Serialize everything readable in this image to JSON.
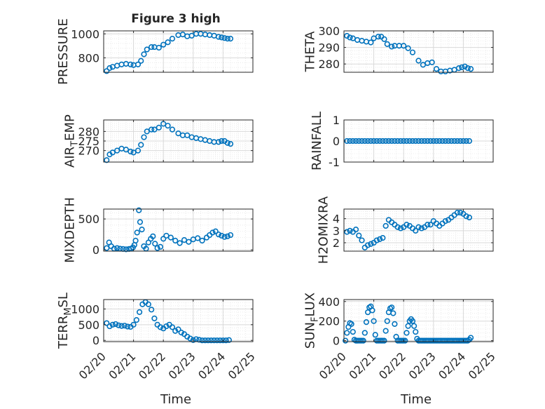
{
  "figure_title": "Figure 3 high",
  "x_axis_label": "Time",
  "x_ticks": [
    "02/20",
    "02/21",
    "02/22",
    "02/23",
    "02/24",
    "02/25"
  ],
  "colors": {
    "marker": "#0072BD",
    "axis": "#262626",
    "grid": "#d9d9d9"
  },
  "chart_data": [
    {
      "type": "scatter",
      "ylabel": "PRESSURE",
      "ylabel_sub": "",
      "ylabel_tail": "",
      "xlim": [
        0,
        5
      ],
      "ylim": [
        680,
        1025
      ],
      "yticks": [
        800,
        1000
      ],
      "series": [
        {
          "x": [
            0.1,
            0.2,
            0.3,
            0.45,
            0.6,
            0.75,
            0.9,
            1.0,
            1.15,
            1.25,
            1.35,
            1.45,
            1.6,
            1.7,
            1.85,
            2.0,
            2.15,
            2.3,
            2.5,
            2.65,
            2.8,
            2.95,
            3.1,
            3.25,
            3.4,
            3.55,
            3.7,
            3.85,
            3.95,
            4.05,
            4.15,
            4.25
          ],
          "y": [
            690,
            715,
            725,
            735,
            745,
            750,
            745,
            740,
            745,
            775,
            830,
            870,
            890,
            890,
            885,
            910,
            930,
            960,
            990,
            995,
            980,
            985,
            1000,
            1000,
            995,
            990,
            985,
            975,
            970,
            965,
            960,
            960
          ]
        }
      ]
    },
    {
      "type": "scatter",
      "ylabel": "THETA",
      "ylabel_sub": "",
      "ylabel_tail": "",
      "xlim": [
        0,
        5
      ],
      "ylim": [
        275,
        300
      ],
      "yticks": [
        280,
        290,
        300
      ],
      "series": [
        {
          "x": [
            0.1,
            0.2,
            0.3,
            0.45,
            0.6,
            0.75,
            0.9,
            1.0,
            1.15,
            1.25,
            1.35,
            1.45,
            1.6,
            1.7,
            1.85,
            2.0,
            2.15,
            2.3,
            2.5,
            2.65,
            2.8,
            2.95,
            3.1,
            3.25,
            3.4,
            3.55,
            3.7,
            3.85,
            3.95,
            4.05,
            4.15,
            4.25
          ],
          "y": [
            297,
            296,
            295.5,
            294.5,
            294,
            293.5,
            293,
            295.5,
            296.5,
            296.5,
            295,
            292,
            290.5,
            291,
            291,
            291,
            289.5,
            287,
            282,
            279.5,
            280.5,
            281,
            277,
            275.5,
            275.5,
            276,
            276.5,
            277.5,
            278,
            278.5,
            277.5,
            277
          ]
        }
      ]
    },
    {
      "type": "scatter",
      "ylabel": "AIR",
      "ylabel_sub": "T",
      "ylabel_tail": "EMP",
      "xlim": [
        0,
        5
      ],
      "ylim": [
        264,
        286
      ],
      "yticks": [
        270,
        275,
        280
      ],
      "series": [
        {
          "x": [
            0.1,
            0.2,
            0.3,
            0.45,
            0.6,
            0.75,
            0.9,
            1.0,
            1.15,
            1.25,
            1.35,
            1.45,
            1.6,
            1.7,
            1.85,
            2.0,
            2.15,
            2.3,
            2.5,
            2.65,
            2.8,
            2.95,
            3.1,
            3.25,
            3.4,
            3.55,
            3.7,
            3.85,
            3.95,
            4.05,
            4.15,
            4.25
          ],
          "y": [
            265,
            268,
            269,
            270,
            271,
            270.5,
            269.5,
            269,
            270,
            273,
            277,
            280,
            281,
            281,
            282,
            284,
            283,
            281,
            279,
            278,
            278,
            277,
            276.5,
            276,
            275.5,
            275,
            274.5,
            274.5,
            275,
            275,
            274,
            273.5
          ]
        }
      ]
    },
    {
      "type": "scatter",
      "ylabel": "RAINFALL",
      "ylabel_sub": "",
      "ylabel_tail": "",
      "xlim": [
        0,
        5
      ],
      "ylim": [
        -1,
        1
      ],
      "yticks": [
        -1,
        0,
        1
      ],
      "series": [
        {
          "x": [
            0.1,
            0.2,
            0.3,
            0.4,
            0.5,
            0.6,
            0.7,
            0.8,
            0.9,
            1.0,
            1.1,
            1.2,
            1.3,
            1.4,
            1.5,
            1.6,
            1.7,
            1.8,
            1.9,
            2.0,
            2.1,
            2.2,
            2.3,
            2.4,
            2.5,
            2.6,
            2.7,
            2.8,
            2.9,
            3.0,
            3.1,
            3.2,
            3.3,
            3.4,
            3.5,
            3.6,
            3.7,
            3.8,
            3.9,
            4.0,
            4.1,
            4.2
          ],
          "y": [
            0,
            0,
            0,
            0,
            0,
            0,
            0,
            0,
            0,
            0,
            0,
            0,
            0,
            0,
            0,
            0,
            0,
            0,
            0,
            0,
            0,
            0,
            0,
            0,
            0,
            0,
            0,
            0,
            0,
            0,
            0,
            0,
            0,
            0,
            0,
            0,
            0,
            0,
            0,
            0,
            0,
            0
          ]
        }
      ]
    },
    {
      "type": "scatter",
      "ylabel": "MIXDEPTH",
      "ylabel_sub": "",
      "ylabel_tail": "",
      "xlim": [
        0,
        5
      ],
      "ylim": [
        -20,
        660
      ],
      "yticks": [
        0,
        500
      ],
      "series": [
        {
          "x": [
            0.1,
            0.18,
            0.25,
            0.35,
            0.45,
            0.55,
            0.65,
            0.75,
            0.85,
            0.92,
            0.98,
            1.03,
            1.07,
            1.12,
            1.18,
            1.22,
            1.28,
            1.35,
            1.42,
            1.5,
            1.58,
            1.65,
            1.72,
            1.8,
            1.9,
            2.0,
            2.1,
            2.25,
            2.4,
            2.55,
            2.7,
            2.85,
            3.0,
            3.15,
            3.3,
            3.45,
            3.55,
            3.65,
            3.75,
            3.85,
            3.95,
            4.05,
            4.15,
            4.25
          ],
          "y": [
            30,
            120,
            60,
            20,
            30,
            20,
            15,
            10,
            15,
            20,
            40,
            80,
            150,
            280,
            640,
            450,
            330,
            60,
            20,
            120,
            180,
            220,
            100,
            30,
            50,
            180,
            230,
            200,
            150,
            110,
            160,
            130,
            170,
            190,
            150,
            200,
            240,
            280,
            300,
            250,
            230,
            210,
            220,
            240
          ]
        }
      ]
    },
    {
      "type": "scatter",
      "ylabel": "H2OMIXRA",
      "ylabel_sub": "",
      "ylabel_tail": "",
      "xlim": [
        0,
        5
      ],
      "ylim": [
        1.3,
        4.8
      ],
      "yticks": [
        2,
        3,
        4
      ],
      "series": [
        {
          "x": [
            0.1,
            0.2,
            0.3,
            0.4,
            0.5,
            0.6,
            0.7,
            0.8,
            0.9,
            1.0,
            1.1,
            1.2,
            1.3,
            1.4,
            1.5,
            1.6,
            1.7,
            1.8,
            1.9,
            2.0,
            2.1,
            2.2,
            2.3,
            2.4,
            2.5,
            2.6,
            2.7,
            2.8,
            2.9,
            3.0,
            3.1,
            3.2,
            3.3,
            3.4,
            3.5,
            3.6,
            3.7,
            3.8,
            3.9,
            4.0,
            4.1,
            4.2
          ],
          "y": [
            2.9,
            3.0,
            2.9,
            3.1,
            2.6,
            2.2,
            1.6,
            1.8,
            1.9,
            2.0,
            2.2,
            2.3,
            2.4,
            3.4,
            3.9,
            3.7,
            3.5,
            3.3,
            3.2,
            3.3,
            3.5,
            3.4,
            3.2,
            3.0,
            3.3,
            3.2,
            3.3,
            3.5,
            3.5,
            3.8,
            3.6,
            3.4,
            3.6,
            3.8,
            3.9,
            4.1,
            4.3,
            4.5,
            4.5,
            4.4,
            4.2,
            4.1
          ]
        }
      ]
    },
    {
      "type": "scatter",
      "ylabel": "TERR",
      "ylabel_sub": "M",
      "ylabel_tail": "SL",
      "xlim": [
        0,
        5
      ],
      "ylim": [
        -40,
        1300
      ],
      "yticks": [
        0,
        500,
        1000
      ],
      "series": [
        {
          "x": [
            0.1,
            0.2,
            0.3,
            0.4,
            0.5,
            0.6,
            0.7,
            0.8,
            0.9,
            1.0,
            1.1,
            1.2,
            1.3,
            1.4,
            1.5,
            1.6,
            1.7,
            1.8,
            1.9,
            2.0,
            2.1,
            2.2,
            2.3,
            2.4,
            2.5,
            2.6,
            2.7,
            2.8,
            2.9,
            3.0,
            3.1,
            3.2,
            3.3,
            3.4,
            3.5,
            3.6,
            3.7,
            3.8,
            3.9,
            4.0,
            4.1,
            4.2
          ],
          "y": [
            550,
            450,
            500,
            520,
            480,
            460,
            470,
            440,
            430,
            500,
            650,
            900,
            1150,
            1220,
            1150,
            980,
            700,
            500,
            420,
            380,
            450,
            500,
            420,
            300,
            350,
            250,
            200,
            120,
            60,
            10,
            40,
            20,
            0,
            0,
            0,
            0,
            0,
            0,
            0,
            0,
            0,
            10
          ]
        }
      ]
    },
    {
      "type": "scatter",
      "ylabel": "SUN",
      "ylabel_sub": "F",
      "ylabel_tail": "LUX",
      "xlim": [
        0,
        5
      ],
      "ylim": [
        -10,
        420
      ],
      "yticks": [
        0,
        200,
        400
      ],
      "series": [
        {
          "x": [
            0.05,
            0.1,
            0.15,
            0.2,
            0.25,
            0.3,
            0.35,
            0.4,
            0.45,
            0.5,
            0.55,
            0.6,
            0.65,
            0.7,
            0.75,
            0.8,
            0.85,
            0.9,
            0.95,
            1.0,
            1.05,
            1.1,
            1.15,
            1.2,
            1.25,
            1.3,
            1.35,
            1.4,
            1.45,
            1.5,
            1.55,
            1.6,
            1.65,
            1.7,
            1.75,
            1.8,
            1.85,
            1.9,
            1.95,
            2.0,
            2.05,
            2.1,
            2.15,
            2.2,
            2.25,
            2.3,
            2.35,
            2.4,
            2.45,
            2.5,
            2.55,
            2.6,
            2.65,
            2.7,
            2.75,
            2.8,
            2.85,
            2.9,
            2.95,
            3.0,
            3.05,
            3.1,
            3.15,
            3.2,
            3.25,
            3.3,
            3.35,
            3.4,
            3.45,
            3.5,
            3.55,
            3.6,
            3.65,
            3.7,
            3.75,
            3.8,
            3.85,
            3.9,
            3.95,
            4.0,
            4.05,
            4.1,
            4.15,
            4.2,
            4.25
          ],
          "y": [
            0,
            80,
            140,
            180,
            170,
            90,
            10,
            0,
            0,
            0,
            0,
            0,
            0,
            80,
            190,
            290,
            340,
            350,
            310,
            200,
            60,
            0,
            0,
            0,
            0,
            0,
            0,
            100,
            200,
            290,
            330,
            340,
            280,
            170,
            40,
            0,
            0,
            0,
            0,
            0,
            0,
            80,
            150,
            200,
            220,
            200,
            150,
            90,
            20,
            0,
            0,
            0,
            0,
            0,
            0,
            0,
            0,
            0,
            0,
            0,
            0,
            0,
            0,
            0,
            0,
            0,
            0,
            0,
            0,
            0,
            0,
            0,
            0,
            0,
            0,
            0,
            0,
            0,
            0,
            0,
            0,
            0,
            0,
            10,
            30
          ]
        }
      ]
    }
  ]
}
